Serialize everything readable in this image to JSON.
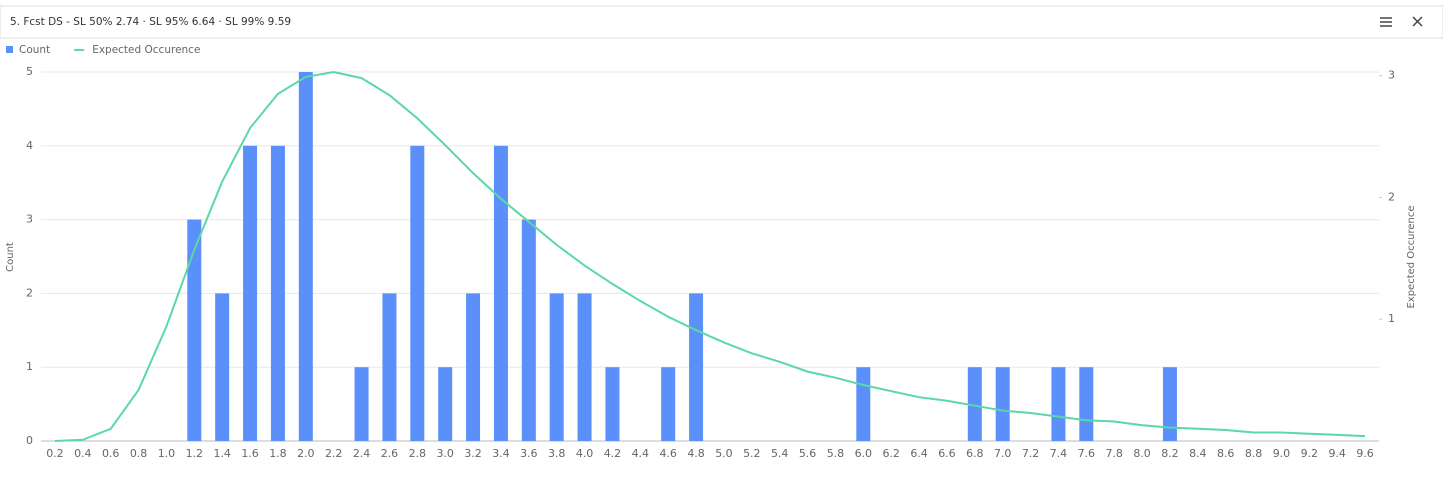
{
  "chart_data": {
    "type": "combo",
    "title": "5. Fcst DS - SL 50% 2.74 · SL 95% 6.64 · SL 99% 9.59",
    "y_label": "Count",
    "y2_label": "Expected Occurence",
    "legend": "top-left",
    "grid": true,
    "categories": [
      "0.2",
      "0.4",
      "0.6",
      "0.8",
      "1.0",
      "1.2",
      "1.4",
      "1.6",
      "1.8",
      "2.0",
      "2.2",
      "2.4",
      "2.6",
      "2.8",
      "3.0",
      "3.2",
      "3.4",
      "3.6",
      "3.8",
      "4.0",
      "4.2",
      "4.4",
      "4.6",
      "4.8",
      "5.0",
      "5.2",
      "5.4",
      "5.6",
      "5.8",
      "6.0",
      "6.2",
      "6.4",
      "6.6",
      "6.8",
      "7.0",
      "7.2",
      "7.4",
      "7.6",
      "7.8",
      "8.0",
      "8.2",
      "8.4",
      "8.6",
      "8.8",
      "9.0",
      "9.2",
      "9.4",
      "9.6"
    ],
    "series": [
      {
        "name": "Count",
        "type": "bar",
        "color": "#5b8ff9",
        "values": [
          0,
          0,
          0,
          0,
          0,
          3,
          2,
          4,
          4,
          5,
          0,
          1,
          2,
          4,
          1,
          2,
          4,
          3,
          2,
          2,
          1,
          0,
          1,
          2,
          0,
          0,
          0,
          0,
          0,
          1,
          0,
          0,
          0,
          1,
          1,
          0,
          1,
          1,
          0,
          0,
          1,
          0,
          0,
          0,
          0,
          0,
          0,
          0
        ]
      },
      {
        "name": "Expected Occurence",
        "type": "line",
        "axis": "y2",
        "color": "#5ad8a6",
        "values": [
          0,
          0.01,
          0.1,
          0.42,
          0.94,
          1.57,
          2.13,
          2.57,
          2.85,
          2.99,
          3.03,
          2.98,
          2.84,
          2.65,
          2.43,
          2.2,
          1.99,
          1.8,
          1.61,
          1.44,
          1.29,
          1.15,
          1.02,
          0.91,
          0.81,
          0.72,
          0.65,
          0.57,
          0.52,
          0.46,
          0.41,
          0.36,
          0.33,
          0.29,
          0.25,
          0.23,
          0.2,
          0.17,
          0.16,
          0.13,
          0.11,
          0.1,
          0.09,
          0.07,
          0.07,
          0.06,
          0.05,
          0.04
        ]
      }
    ],
    "ylim": [
      0,
      5
    ],
    "yticks": [
      0,
      1,
      2,
      3,
      4,
      5
    ],
    "y2lim": [
      0,
      3.03
    ],
    "y2ticks": [
      1,
      2,
      3
    ]
  }
}
